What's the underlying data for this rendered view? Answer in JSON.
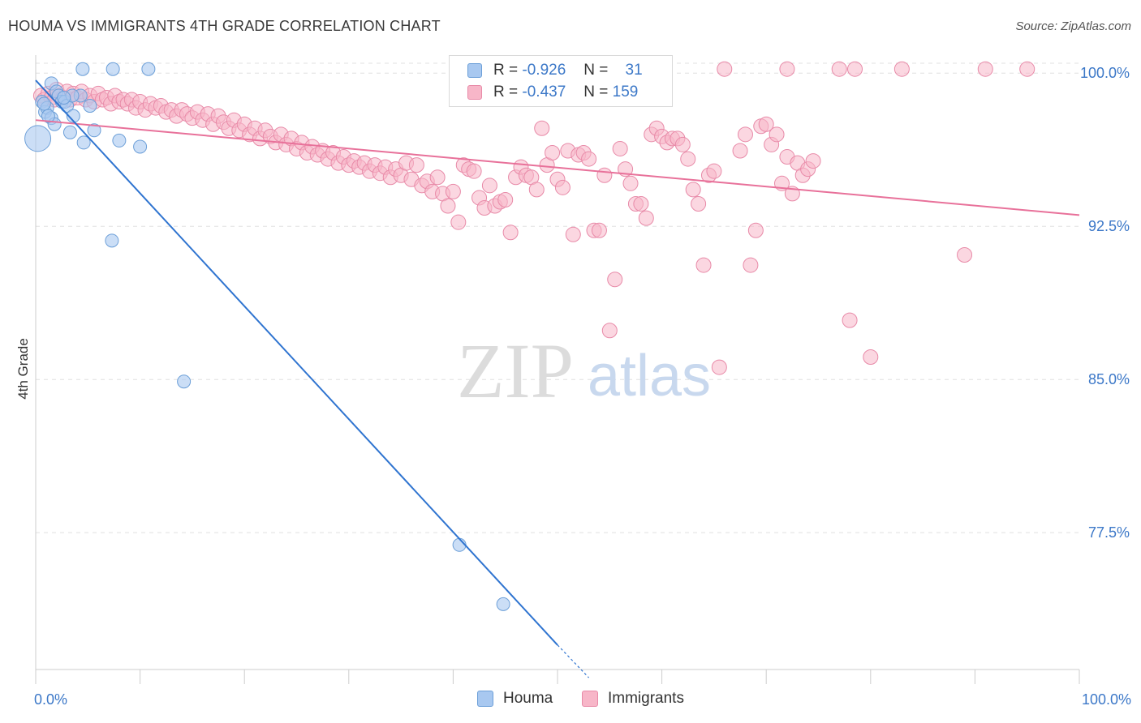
{
  "title": "HOUMA VS IMMIGRANTS 4TH GRADE CORRELATION CHART",
  "source": "Source: ZipAtlas.com",
  "watermark": {
    "zip": "ZIP",
    "atlas": "atlas"
  },
  "legend_stats": [
    {
      "r_label": "R =",
      "r_value": "-0.926",
      "n_label": "N =",
      "n_value": "31"
    },
    {
      "r_label": "R =",
      "r_value": "-0.437",
      "n_label": "N =",
      "n_value": "159"
    }
  ],
  "colors": {
    "houma_fill": "#a8c8f0",
    "houma_stroke": "#6c9fd8",
    "houma_line": "#2f74d0",
    "imm_fill": "#f7b6c8",
    "imm_stroke": "#e88aa8",
    "imm_line": "#e8719a",
    "axis_label": "#3c78c8",
    "grid": "#e0e0e0"
  },
  "chart_data": {
    "type": "scatter",
    "xlabel": "",
    "ylabel": "4th Grade",
    "xlim": [
      0,
      100
    ],
    "ylim": [
      70.8,
      101.2
    ],
    "x_tick_labels": [
      "0.0%",
      "100.0%"
    ],
    "y_ticks": [
      77.5,
      85.0,
      92.5,
      100.0
    ],
    "y_tick_labels": [
      "77.5%",
      "85.0%",
      "92.5%",
      "100.0%"
    ],
    "grid": true,
    "series": [
      {
        "name": "Houma",
        "points": [
          [
            0.2,
            96.8
          ],
          [
            0.6,
            98.6
          ],
          [
            0.9,
            98.1
          ],
          [
            1.1,
            98.3
          ],
          [
            1.5,
            97.8
          ],
          [
            1.5,
            99.5
          ],
          [
            1.8,
            97.5
          ],
          [
            2.0,
            99.1
          ],
          [
            2.2,
            98.9
          ],
          [
            2.5,
            98.6
          ],
          [
            2.8,
            98.6
          ],
          [
            3.0,
            98.4
          ],
          [
            3.3,
            97.1
          ],
          [
            3.6,
            97.9
          ],
          [
            4.3,
            98.9
          ],
          [
            4.6,
            96.6
          ],
          [
            5.2,
            98.4
          ],
          [
            5.6,
            97.2
          ],
          [
            4.5,
            100.2
          ],
          [
            7.4,
            100.2
          ],
          [
            10.8,
            100.2
          ],
          [
            8.0,
            96.7
          ],
          [
            10.0,
            96.4
          ],
          [
            7.3,
            91.8
          ],
          [
            14.2,
            84.9
          ],
          [
            40.6,
            76.9
          ],
          [
            44.8,
            74.0
          ],
          [
            3.5,
            98.9
          ],
          [
            1.2,
            97.9
          ],
          [
            2.7,
            98.8
          ],
          [
            0.8,
            98.5
          ]
        ],
        "trend": {
          "x": [
            0,
            50
          ],
          "y": [
            99.65,
            72.0
          ],
          "dashed_x": [
            50,
            53
          ],
          "dashed_y": [
            72.0,
            70.4
          ]
        }
      },
      {
        "name": "Immigrants",
        "points": [
          [
            0.5,
            98.9
          ],
          [
            0.8,
            98.7
          ],
          [
            1.2,
            99.0
          ],
          [
            1.5,
            98.8
          ],
          [
            1.8,
            98.7
          ],
          [
            2.0,
            99.2
          ],
          [
            2.3,
            98.9
          ],
          [
            2.6,
            98.8
          ],
          [
            3.0,
            99.1
          ],
          [
            3.3,
            98.7
          ],
          [
            3.6,
            99.0
          ],
          [
            4.0,
            98.8
          ],
          [
            4.4,
            99.1
          ],
          [
            4.8,
            98.7
          ],
          [
            5.2,
            98.9
          ],
          [
            5.6,
            98.6
          ],
          [
            6.0,
            99.0
          ],
          [
            6.4,
            98.7
          ],
          [
            6.8,
            98.8
          ],
          [
            7.2,
            98.5
          ],
          [
            7.6,
            98.9
          ],
          [
            8.0,
            98.6
          ],
          [
            8.4,
            98.7
          ],
          [
            8.8,
            98.5
          ],
          [
            9.2,
            98.7
          ],
          [
            9.6,
            98.3
          ],
          [
            10.0,
            98.6
          ],
          [
            10.5,
            98.2
          ],
          [
            11.0,
            98.5
          ],
          [
            11.5,
            98.3
          ],
          [
            12.0,
            98.4
          ],
          [
            12.5,
            98.1
          ],
          [
            13.0,
            98.2
          ],
          [
            13.5,
            97.9
          ],
          [
            14.0,
            98.2
          ],
          [
            14.5,
            98.0
          ],
          [
            15.0,
            97.8
          ],
          [
            15.5,
            98.1
          ],
          [
            16.0,
            97.7
          ],
          [
            16.5,
            98.0
          ],
          [
            17.0,
            97.5
          ],
          [
            17.5,
            97.9
          ],
          [
            18.0,
            97.6
          ],
          [
            18.5,
            97.3
          ],
          [
            19.0,
            97.7
          ],
          [
            19.5,
            97.2
          ],
          [
            20.0,
            97.5
          ],
          [
            20.5,
            97.0
          ],
          [
            21.0,
            97.3
          ],
          [
            21.5,
            96.8
          ],
          [
            22.0,
            97.2
          ],
          [
            22.5,
            96.9
          ],
          [
            23.0,
            96.6
          ],
          [
            23.5,
            97.0
          ],
          [
            24.0,
            96.5
          ],
          [
            24.5,
            96.8
          ],
          [
            25.0,
            96.3
          ],
          [
            25.5,
            96.6
          ],
          [
            26.0,
            96.1
          ],
          [
            26.5,
            96.4
          ],
          [
            27.0,
            96.0
          ],
          [
            27.5,
            96.2
          ],
          [
            28.0,
            95.8
          ],
          [
            28.5,
            96.1
          ],
          [
            29.0,
            95.6
          ],
          [
            29.5,
            95.9
          ],
          [
            30.0,
            95.5
          ],
          [
            30.5,
            95.7
          ],
          [
            31.0,
            95.4
          ],
          [
            31.5,
            95.6
          ],
          [
            32.0,
            95.2
          ],
          [
            32.5,
            95.5
          ],
          [
            33.0,
            95.1
          ],
          [
            33.5,
            95.4
          ],
          [
            34.0,
            94.9
          ],
          [
            34.5,
            95.3
          ],
          [
            35.0,
            95.0
          ],
          [
            35.5,
            95.6
          ],
          [
            36.0,
            94.8
          ],
          [
            36.5,
            95.5
          ],
          [
            37.0,
            94.5
          ],
          [
            37.5,
            94.7
          ],
          [
            38.0,
            94.2
          ],
          [
            38.5,
            94.9
          ],
          [
            39.0,
            94.1
          ],
          [
            39.5,
            93.5
          ],
          [
            40.0,
            94.2
          ],
          [
            40.5,
            92.7
          ],
          [
            41.0,
            95.5
          ],
          [
            41.5,
            95.3
          ],
          [
            42.0,
            95.2
          ],
          [
            42.5,
            93.9
          ],
          [
            43.0,
            93.4
          ],
          [
            43.5,
            94.5
          ],
          [
            44.0,
            93.5
          ],
          [
            44.5,
            93.7
          ],
          [
            45.0,
            93.8
          ],
          [
            45.5,
            92.2
          ],
          [
            46.0,
            94.9
          ],
          [
            46.5,
            95.4
          ],
          [
            47.0,
            95.0
          ],
          [
            47.5,
            94.9
          ],
          [
            48.0,
            94.3
          ],
          [
            48.5,
            97.3
          ],
          [
            49.0,
            95.5
          ],
          [
            49.5,
            96.1
          ],
          [
            50.0,
            94.8
          ],
          [
            50.5,
            94.4
          ],
          [
            51.0,
            96.2
          ],
          [
            51.5,
            92.1
          ],
          [
            52.0,
            96.0
          ],
          [
            52.5,
            96.1
          ],
          [
            53.0,
            95.8
          ],
          [
            53.5,
            92.3
          ],
          [
            54.0,
            92.3
          ],
          [
            54.5,
            95.0
          ],
          [
            55.0,
            87.4
          ],
          [
            55.5,
            89.9
          ],
          [
            56.0,
            96.3
          ],
          [
            56.5,
            95.3
          ],
          [
            57.0,
            94.6
          ],
          [
            57.5,
            93.6
          ],
          [
            58.0,
            93.6
          ],
          [
            58.5,
            92.9
          ],
          [
            59.0,
            97.0
          ],
          [
            59.5,
            97.3
          ],
          [
            60.0,
            96.9
          ],
          [
            60.5,
            96.6
          ],
          [
            61.0,
            96.8
          ],
          [
            61.5,
            96.8
          ],
          [
            62.0,
            96.5
          ],
          [
            62.5,
            95.8
          ],
          [
            63.0,
            94.3
          ],
          [
            63.5,
            93.6
          ],
          [
            64.0,
            90.6
          ],
          [
            64.5,
            95.0
          ],
          [
            65.0,
            95.2
          ],
          [
            65.5,
            85.6
          ],
          [
            66.0,
            100.2
          ],
          [
            67.5,
            96.2
          ],
          [
            68.0,
            97.0
          ],
          [
            68.5,
            90.6
          ],
          [
            69.0,
            92.3
          ],
          [
            69.5,
            97.4
          ],
          [
            70.0,
            97.5
          ],
          [
            70.5,
            96.5
          ],
          [
            71.0,
            97.0
          ],
          [
            71.5,
            94.6
          ],
          [
            72.0,
            95.9
          ],
          [
            72.5,
            94.1
          ],
          [
            73.0,
            95.6
          ],
          [
            73.5,
            95.0
          ],
          [
            74.0,
            95.3
          ],
          [
            74.5,
            95.7
          ],
          [
            78.0,
            87.9
          ],
          [
            80.0,
            86.1
          ],
          [
            72.0,
            100.2
          ],
          [
            77.0,
            100.2
          ],
          [
            78.5,
            100.2
          ],
          [
            83.0,
            100.2
          ],
          [
            91.0,
            100.2
          ],
          [
            95.0,
            100.2
          ],
          [
            89.0,
            91.1
          ]
        ],
        "trend": {
          "x": [
            0,
            100
          ],
          "y": [
            97.7,
            93.05
          ]
        }
      }
    ]
  }
}
